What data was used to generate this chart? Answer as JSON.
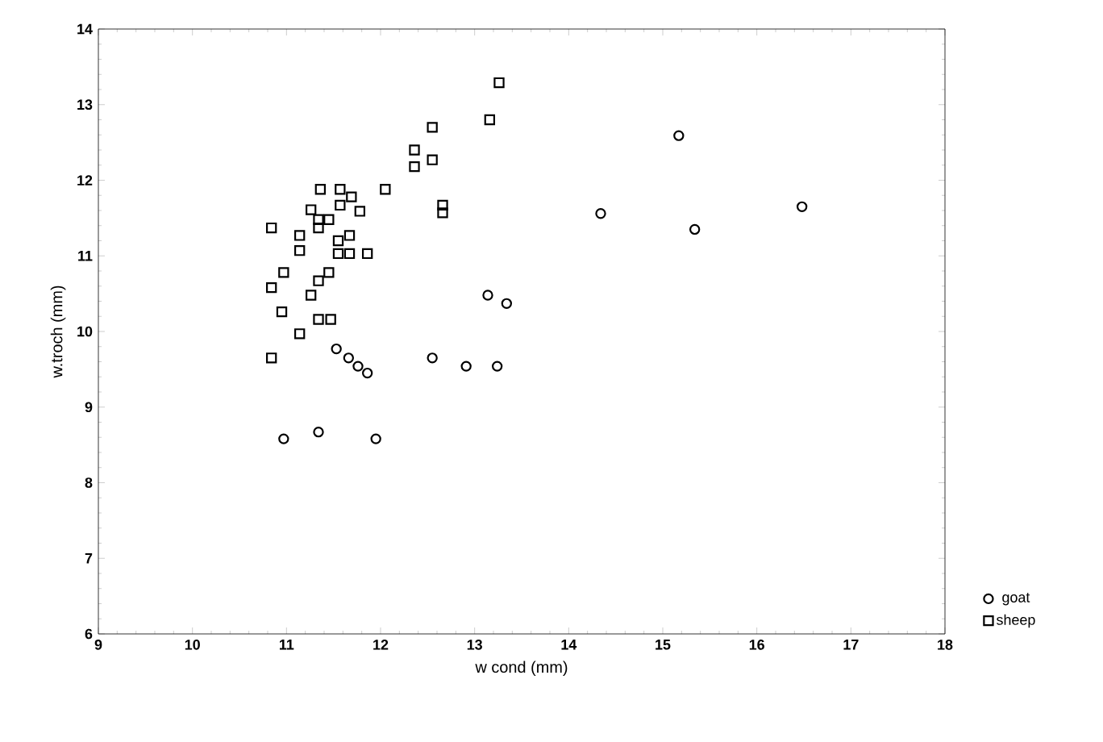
{
  "chart_data": {
    "type": "scatter",
    "xlabel": "w cond (mm)",
    "ylabel": "w.troch (mm)",
    "xlim": [
      9,
      18
    ],
    "ylim": [
      6,
      14
    ],
    "xticks": [
      9,
      10,
      11,
      12,
      13,
      14,
      15,
      16,
      17,
      18
    ],
    "yticks": [
      6,
      7,
      8,
      9,
      10,
      11,
      12,
      13,
      14
    ],
    "legend": "bottom right",
    "series": [
      {
        "name": "goat",
        "color": "#000000",
        "marker": "circle",
        "x": [
          10.97,
          11.34,
          11.95,
          11.53,
          11.66,
          11.76,
          11.86,
          12.55,
          12.91,
          13.24,
          13.14,
          13.34,
          15.17,
          14.34,
          15.34,
          16.48
        ],
        "values": [
          8.58,
          8.67,
          8.58,
          9.77,
          9.65,
          9.54,
          9.45,
          9.65,
          9.54,
          9.54,
          10.48,
          10.37,
          12.59,
          11.56,
          11.35,
          11.65
        ]
      },
      {
        "name": "sheep",
        "color": "#000000",
        "marker": "square",
        "x": [
          13.26,
          13.16,
          12.55,
          12.36,
          12.36,
          12.55,
          12.05,
          12.66,
          12.66,
          11.36,
          11.57,
          11.69,
          11.57,
          11.78,
          11.26,
          11.34,
          11.45,
          11.34,
          10.84,
          11.14,
          11.14,
          11.67,
          11.55,
          11.55,
          11.67,
          11.86,
          10.97,
          10.84,
          11.45,
          11.34,
          11.26,
          10.95,
          11.34,
          11.47,
          11.14,
          10.84
        ],
        "values": [
          13.29,
          12.8,
          12.7,
          12.4,
          12.18,
          12.27,
          11.88,
          11.67,
          11.57,
          11.88,
          11.88,
          11.78,
          11.67,
          11.59,
          11.61,
          11.48,
          11.48,
          11.37,
          11.37,
          11.27,
          11.07,
          11.27,
          11.2,
          11.03,
          11.03,
          11.03,
          10.78,
          10.58,
          10.78,
          10.67,
          10.48,
          10.26,
          10.16,
          10.16,
          9.97,
          9.65
        ]
      }
    ]
  }
}
